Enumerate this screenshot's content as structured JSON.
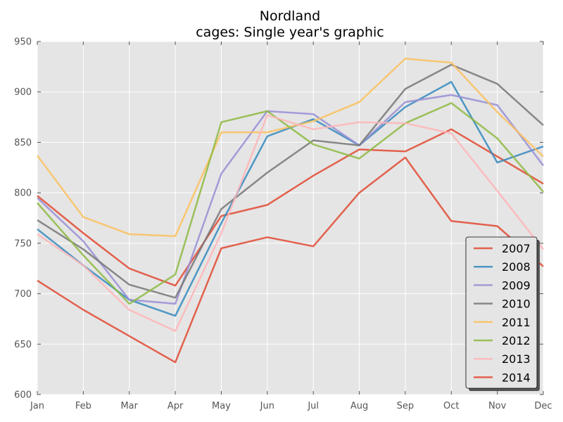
{
  "chart_data": {
    "type": "line",
    "title": "Nordland",
    "subtitle": "cages: Single year's graphic",
    "xlabel": "",
    "ylabel": "",
    "categories": [
      "Jan",
      "Feb",
      "Mar",
      "Apr",
      "May",
      "Jun",
      "Jul",
      "Aug",
      "Sep",
      "Oct",
      "Nov",
      "Dec"
    ],
    "ylim": [
      600,
      950
    ],
    "yticks": [
      600,
      650,
      700,
      750,
      800,
      850,
      900,
      950
    ],
    "grid": true,
    "legend_position": "lower-right",
    "background_color": "#e5e5e5",
    "grid_color": "#ffffff",
    "series": [
      {
        "name": "2007",
        "color": "#e24a33",
        "values": [
          797,
          760,
          725,
          708,
          777,
          788,
          817,
          843,
          841,
          863,
          836,
          809
        ]
      },
      {
        "name": "2008",
        "color": "#348abd",
        "values": [
          764,
          728,
          694,
          678,
          770,
          856,
          873,
          847,
          885,
          910,
          830,
          846
        ]
      },
      {
        "name": "2009",
        "color": "#988ed5",
        "values": [
          795,
          752,
          694,
          690,
          819,
          881,
          878,
          847,
          890,
          897,
          887,
          827
        ]
      },
      {
        "name": "2010",
        "color": "#777777",
        "values": [
          773,
          744,
          709,
          696,
          784,
          820,
          852,
          847,
          903,
          927,
          908,
          867
        ]
      },
      {
        "name": "2011",
        "color": "#fbc15e",
        "values": [
          837,
          776,
          759,
          757,
          860,
          860,
          871,
          890,
          933,
          929,
          880,
          836
        ]
      },
      {
        "name": "2012",
        "color": "#8eba42",
        "values": [
          790,
          738,
          690,
          719,
          870,
          881,
          848,
          834,
          869,
          889,
          854,
          801
        ]
      },
      {
        "name": "2013",
        "color": "#ffb5b8",
        "values": [
          759,
          728,
          684,
          663,
          760,
          877,
          863,
          870,
          869,
          859,
          802,
          744
        ]
      },
      {
        "name": "2014",
        "color": "#e24a33",
        "values": [
          713,
          684,
          658,
          632,
          745,
          756,
          747,
          800,
          835,
          772,
          767,
          727
        ]
      }
    ]
  }
}
